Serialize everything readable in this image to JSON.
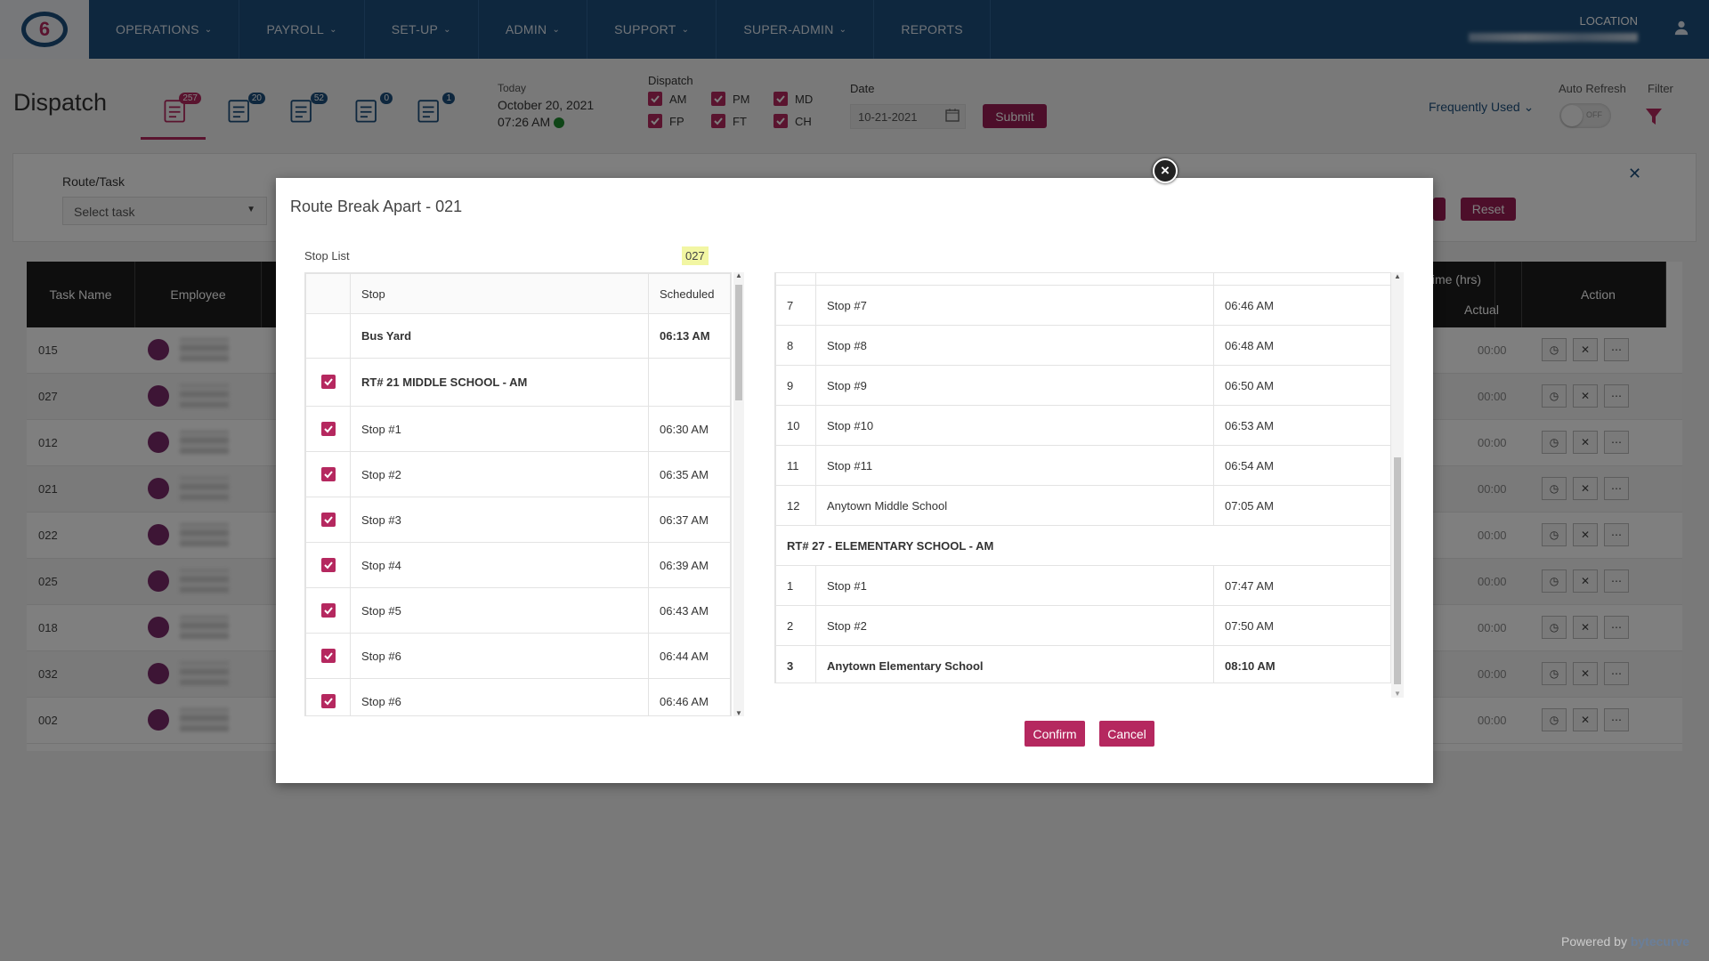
{
  "nav": {
    "logo": "6",
    "items": [
      {
        "label": "OPERATIONS",
        "chevron": true
      },
      {
        "label": "PAYROLL",
        "chevron": true
      },
      {
        "label": "SET-UP",
        "chevron": true
      },
      {
        "label": "ADMIN",
        "chevron": true
      },
      {
        "label": "SUPPORT",
        "chevron": true
      },
      {
        "label": "SUPER-ADMIN",
        "chevron": true
      },
      {
        "label": "REPORTS",
        "chevron": false
      }
    ],
    "location_label": "LOCATION"
  },
  "header": {
    "title": "Dispatch",
    "tabs": [
      {
        "icon": "edit-list-icon",
        "badge": "257"
      },
      {
        "icon": "roster-icon",
        "badge": "20"
      },
      {
        "icon": "clock-icon",
        "badge": "52"
      },
      {
        "icon": "map-user-icon",
        "badge": "0"
      },
      {
        "icon": "bus-icon",
        "badge": "1"
      }
    ],
    "today_label": "Today",
    "today_date": "October 20, 2021",
    "today_time": "07:26 AM",
    "dispatch_label": "Dispatch",
    "dispatch_options": [
      "AM",
      "PM",
      "MD",
      "FP",
      "FT",
      "CH"
    ],
    "date_label": "Date",
    "date_value": "10-21-2021",
    "submit_label": "Submit",
    "frequently_used": "Frequently Used",
    "auto_refresh_label": "Auto Refresh",
    "toggle_state": "OFF",
    "filter_label": "Filter"
  },
  "filter_panel": {
    "route_task_label": "Route/Task",
    "select_placeholder": "Select task",
    "reset_label": "Reset"
  },
  "grid": {
    "headers": {
      "task_name": "Task Name",
      "employee": "Employee",
      "time_hrs": "time (hrs)",
      "e": "e",
      "actual": "Actual",
      "action": "Action"
    },
    "rows": [
      {
        "task": "015",
        "actual": "00:00"
      },
      {
        "task": "027",
        "actual": "00:00"
      },
      {
        "task": "012",
        "actual": "00:00"
      },
      {
        "task": "021",
        "actual": "00:00"
      },
      {
        "task": "022",
        "actual": "00:00"
      },
      {
        "task": "025",
        "actual": "00:00"
      },
      {
        "task": "018",
        "actual": "00:00"
      },
      {
        "task": "032",
        "actual": "00:00"
      },
      {
        "task": "002",
        "actual": "00:00"
      }
    ]
  },
  "modal": {
    "title": "Route Break Apart - 021",
    "stop_list_label": "Stop List",
    "left_headers": {
      "stop": "Stop",
      "scheduled": "Scheduled"
    },
    "left_rows": [
      {
        "checked": false,
        "stop": "Bus Yard",
        "time": "06:13 AM",
        "bold": true
      },
      {
        "checked": true,
        "stop": "RT# 21 MIDDLE SCHOOL - AM",
        "time": "",
        "bold": true
      },
      {
        "checked": true,
        "stop": "Stop #1",
        "time": "06:30 AM",
        "bold": false
      },
      {
        "checked": true,
        "stop": "Stop #2",
        "time": "06:35 AM",
        "bold": false
      },
      {
        "checked": true,
        "stop": "Stop #3",
        "time": "06:37 AM",
        "bold": false
      },
      {
        "checked": true,
        "stop": "Stop #4",
        "time": "06:39 AM",
        "bold": false
      },
      {
        "checked": true,
        "stop": "Stop #5",
        "time": "06:43 AM",
        "bold": false
      },
      {
        "checked": true,
        "stop": "Stop #6",
        "time": "06:44 AM",
        "bold": false
      },
      {
        "checked": true,
        "stop": "Stop #6",
        "time": "06:46 AM",
        "bold": false
      }
    ],
    "target_route": "027",
    "right_rows": [
      {
        "n": "7",
        "stop": "Stop #7",
        "time": "06:46 AM"
      },
      {
        "n": "8",
        "stop": "Stop #8",
        "time": "06:48 AM"
      },
      {
        "n": "9",
        "stop": "Stop #9",
        "time": "06:50 AM"
      },
      {
        "n": "10",
        "stop": "Stop #10",
        "time": "06:53 AM"
      },
      {
        "n": "11",
        "stop": "Stop #11",
        "time": "06:54 AM"
      },
      {
        "n": "12",
        "stop": "Anytown Middle School",
        "time": "07:05 AM"
      }
    ],
    "right_section_title": "RT# 27 - ELEMENTARY SCHOOL - AM",
    "right_rows_2": [
      {
        "n": "1",
        "stop": "Stop #1",
        "time": "07:47 AM",
        "bold": false
      },
      {
        "n": "2",
        "stop": "Stop #2",
        "time": "07:50 AM",
        "bold": false
      },
      {
        "n": "3",
        "stop": "Anytown Elementary School",
        "time": "08:10 AM",
        "bold": true
      }
    ],
    "confirm_label": "Confirm",
    "cancel_label": "Cancel"
  },
  "footer": {
    "powered_by": "Powered by",
    "brand": "bytecurve"
  },
  "colors": {
    "nav": "#1d4f7c",
    "accent": "#b5285f",
    "submit": "#9a1d54"
  }
}
